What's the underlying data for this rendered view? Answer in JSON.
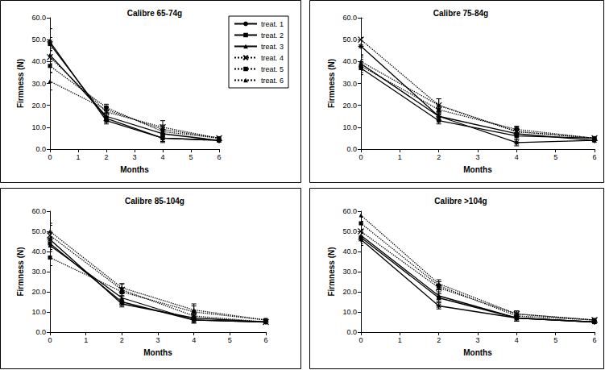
{
  "chart_data": [
    {
      "type": "line",
      "title": "Calibre 65-74g",
      "x_label": "Months",
      "y_label": "Firmness (N)",
      "x": [
        0,
        2,
        4,
        6
      ],
      "xlim": [
        0,
        6
      ],
      "xticks": [
        0,
        1,
        2,
        3,
        4,
        5,
        6
      ],
      "ylim": [
        0,
        60
      ],
      "yticks": [
        {
          "value": 0,
          "label": "0.0"
        },
        {
          "value": 10,
          "label": "10.0"
        },
        {
          "value": 20,
          "label": "20.0"
        },
        {
          "value": 30,
          "label": "30.0"
        },
        {
          "value": 40,
          "label": "40.0"
        },
        {
          "value": 50,
          "label": "50.0"
        },
        {
          "value": 60,
          "label": "60.0"
        }
      ],
      "legend": "right",
      "series": [
        {
          "name": "treat. 1",
          "color": "#000000",
          "marker": "asterisk",
          "line_style": "solid",
          "values": [
            49,
            13,
            5,
            4
          ],
          "errors": [
            6,
            1.5,
            2,
            0.5
          ]
        },
        {
          "name": "treat. 2",
          "color": "#000000",
          "marker": "square",
          "line_style": "solid",
          "values": [
            48,
            14,
            5,
            4
          ],
          "errors": [
            3,
            1.5,
            1.5,
            0.5
          ]
        },
        {
          "name": "treat. 3",
          "color": "#000000",
          "marker": "triangle",
          "line_style": "solid",
          "values": [
            43,
            15,
            7,
            4
          ],
          "errors": [
            3,
            1.5,
            2,
            0.5
          ]
        },
        {
          "name": "treat. 4",
          "color": "#000000",
          "marker": "x",
          "line_style": "dotted",
          "values": [
            42,
            17,
            10,
            5
          ],
          "errors": [
            3,
            2,
            3,
            0.5
          ]
        },
        {
          "name": "treat. 5",
          "color": "#000000",
          "marker": "square",
          "line_style": "dotted",
          "values": [
            38,
            19,
            8,
            5
          ],
          "errors": [
            3,
            1.5,
            2,
            0.5
          ]
        },
        {
          "name": "treat. 6",
          "color": "#000000",
          "marker": "triangle",
          "line_style": "dotted",
          "values": [
            31,
            18,
            9,
            5
          ],
          "errors": [
            4,
            1.5,
            2,
            0.5
          ]
        }
      ]
    },
    {
      "type": "line",
      "title": "Calibre 75-84g",
      "x_label": "Months",
      "y_label": "Firmness (N)",
      "x": [
        0,
        2,
        4,
        6
      ],
      "xlim": [
        0,
        6
      ],
      "xticks": [
        0,
        1,
        2,
        3,
        4,
        5,
        6
      ],
      "ylim": [
        0,
        60
      ],
      "yticks": [
        {
          "value": 0,
          "label": "0.0"
        },
        {
          "value": 10,
          "label": "10.0"
        },
        {
          "value": 20,
          "label": "20.0"
        },
        {
          "value": 30,
          "label": "30.0"
        },
        {
          "value": 40,
          "label": "40.0"
        },
        {
          "value": 50,
          "label": "50.0"
        },
        {
          "value": 60,
          "label": "60.0"
        }
      ],
      "series": [
        {
          "name": "treat. 1",
          "color": "#000000",
          "marker": "asterisk",
          "line_style": "solid",
          "values": [
            47,
            15,
            3,
            4
          ],
          "errors": [
            4,
            2,
            1.5,
            0.5
          ]
        },
        {
          "name": "treat. 2",
          "color": "#000000",
          "marker": "square",
          "line_style": "solid",
          "values": [
            37,
            13,
            6,
            5
          ],
          "errors": [
            3,
            1.5,
            1.5,
            0.5
          ]
        },
        {
          "name": "treat. 3",
          "color": "#000000",
          "marker": "triangle",
          "line_style": "solid",
          "values": [
            39,
            15,
            7,
            4
          ],
          "errors": [
            3,
            1.5,
            1.5,
            0.5
          ]
        },
        {
          "name": "treat. 4",
          "color": "#000000",
          "marker": "x",
          "line_style": "dotted",
          "values": [
            50,
            20,
            8,
            5
          ],
          "errors": [
            10,
            3,
            2,
            0.5
          ]
        },
        {
          "name": "treat. 5",
          "color": "#000000",
          "marker": "square",
          "line_style": "dotted",
          "values": [
            38,
            18,
            9,
            5
          ],
          "errors": [
            3,
            2,
            1.5,
            0.5
          ]
        },
        {
          "name": "treat. 6",
          "color": "#000000",
          "marker": "triangle",
          "line_style": "dotted",
          "values": [
            40,
            20,
            8,
            5
          ],
          "errors": [
            3,
            3,
            1.5,
            0.5
          ]
        }
      ]
    },
    {
      "type": "line",
      "title": "Calibre 85-104g",
      "x_label": "Months",
      "y_label": "Firmness (N)",
      "x": [
        0,
        2,
        4,
        6
      ],
      "xlim": [
        0,
        6
      ],
      "xticks": [
        0,
        1,
        2,
        3,
        4,
        5,
        6
      ],
      "ylim": [
        0,
        60
      ],
      "yticks": [
        {
          "value": 0,
          "label": "0.0"
        },
        {
          "value": 10,
          "label": "10.0"
        },
        {
          "value": 20,
          "label": "20.0"
        },
        {
          "value": 30,
          "label": "30.0"
        },
        {
          "value": 40,
          "label": "40.0"
        },
        {
          "value": 50,
          "label": "50.0"
        },
        {
          "value": 60,
          "label": "60.0"
        }
      ],
      "series": [
        {
          "name": "treat. 1",
          "color": "#000000",
          "marker": "asterisk",
          "line_style": "solid",
          "values": [
            46,
            14,
            7,
            5
          ],
          "errors": [
            4,
            1.5,
            1.5,
            0.5
          ]
        },
        {
          "name": "treat. 2",
          "color": "#000000",
          "marker": "square",
          "line_style": "solid",
          "values": [
            44,
            15,
            6,
            5
          ],
          "errors": [
            3,
            1.5,
            1.5,
            0.5
          ]
        },
        {
          "name": "treat. 3",
          "color": "#000000",
          "marker": "triangle",
          "line_style": "solid",
          "values": [
            43,
            17,
            6,
            5
          ],
          "errors": [
            3,
            2,
            1.5,
            0.5
          ]
        },
        {
          "name": "treat. 4",
          "color": "#000000",
          "marker": "x",
          "line_style": "dotted",
          "values": [
            48,
            21,
            8,
            5
          ],
          "errors": [
            5,
            3,
            2,
            0.5
          ]
        },
        {
          "name": "treat. 5",
          "color": "#000000",
          "marker": "square",
          "line_style": "dotted",
          "values": [
            37,
            20,
            10,
            6
          ],
          "errors": [
            4,
            2,
            3,
            0.5
          ]
        },
        {
          "name": "treat. 6",
          "color": "#000000",
          "marker": "triangle",
          "line_style": "dotted",
          "values": [
            50,
            22,
            11,
            6
          ],
          "errors": [
            4,
            2,
            3,
            0.5
          ]
        }
      ]
    },
    {
      "type": "line",
      "title": "Calibre >104g",
      "x_label": "Months",
      "y_label": "Firmness (N)",
      "x": [
        0,
        2,
        4,
        6
      ],
      "xlim": [
        0,
        6
      ],
      "xticks": [
        0,
        1,
        2,
        3,
        4,
        5,
        6
      ],
      "ylim": [
        0,
        60
      ],
      "yticks": [
        {
          "value": 0,
          "label": "0.0"
        },
        {
          "value": 10,
          "label": "10.0"
        },
        {
          "value": 20,
          "label": "20.0"
        },
        {
          "value": 30,
          "label": "30.0"
        },
        {
          "value": 40,
          "label": "40.0"
        },
        {
          "value": 50,
          "label": "50.0"
        },
        {
          "value": 60,
          "label": "60.0"
        }
      ],
      "series": [
        {
          "name": "treat. 1",
          "color": "#000000",
          "marker": "asterisk",
          "line_style": "solid",
          "values": [
            46,
            13,
            7,
            5
          ],
          "errors": [
            3,
            1.5,
            1.5,
            0.5
          ]
        },
        {
          "name": "treat. 2",
          "color": "#000000",
          "marker": "square",
          "line_style": "solid",
          "values": [
            47,
            17,
            7,
            5
          ],
          "errors": [
            3,
            2,
            1.5,
            0.5
          ]
        },
        {
          "name": "treat. 3",
          "color": "#000000",
          "marker": "triangle",
          "line_style": "solid",
          "values": [
            48,
            18,
            7,
            5
          ],
          "errors": [
            3,
            2,
            1.5,
            0.5
          ]
        },
        {
          "name": "treat. 4",
          "color": "#000000",
          "marker": "x",
          "line_style": "dotted",
          "values": [
            50,
            22,
            9,
            6
          ],
          "errors": [
            4,
            3,
            1.5,
            0.5
          ]
        },
        {
          "name": "treat. 5",
          "color": "#000000",
          "marker": "square",
          "line_style": "dotted",
          "values": [
            54,
            23,
            8,
            6
          ],
          "errors": [
            3,
            2,
            1.5,
            0.5
          ]
        },
        {
          "name": "treat. 6",
          "color": "#000000",
          "marker": "triangle",
          "line_style": "dotted",
          "values": [
            58,
            24,
            9,
            6
          ],
          "errors": [
            3,
            2,
            1.5,
            0.5
          ]
        }
      ]
    }
  ]
}
